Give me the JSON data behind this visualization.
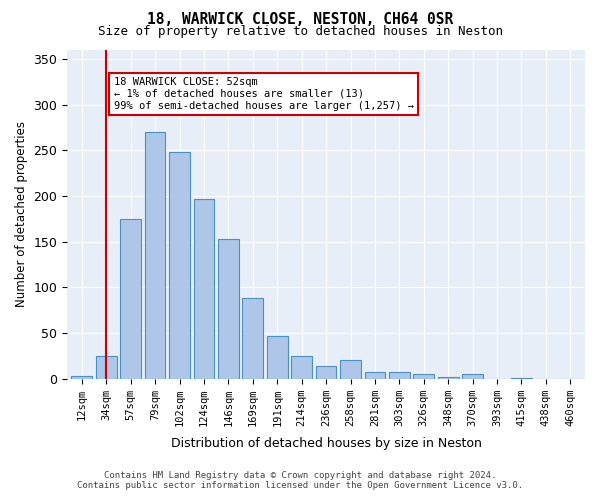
{
  "title1": "18, WARWICK CLOSE, NESTON, CH64 0SR",
  "title2": "Size of property relative to detached houses in Neston",
  "xlabel": "Distribution of detached houses by size in Neston",
  "ylabel": "Number of detached properties",
  "categories": [
    "12sqm",
    "34sqm",
    "57sqm",
    "79sqm",
    "102sqm",
    "124sqm",
    "146sqm",
    "169sqm",
    "191sqm",
    "214sqm",
    "236sqm",
    "258sqm",
    "281sqm",
    "303sqm",
    "326sqm",
    "348sqm",
    "370sqm",
    "393sqm",
    "415sqm",
    "438sqm",
    "460sqm"
  ],
  "bar_heights": [
    3,
    25,
    175,
    270,
    248,
    197,
    153,
    88,
    47,
    25,
    14,
    20,
    7,
    7,
    5,
    2,
    5,
    0,
    1,
    0,
    0
  ],
  "bar_color": "#aec6e8",
  "bar_edge_color": "#4a90c4",
  "property_line_x": 1.0,
  "property_line_label": "18 WARWICK CLOSE: 52sqm",
  "annotation_line1": "18 WARWICK CLOSE: 52sqm",
  "annotation_line2": "← 1% of detached houses are smaller (13)",
  "annotation_line3": "99% of semi-detached houses are larger (1,257) →",
  "annotation_box_color": "#ffffff",
  "annotation_box_edge_color": "#cc0000",
  "vline_color": "#cc0000",
  "ylim": [
    0,
    360
  ],
  "yticks": [
    0,
    50,
    100,
    150,
    200,
    250,
    300,
    350
  ],
  "bg_color": "#e8eef8",
  "footer1": "Contains HM Land Registry data © Crown copyright and database right 2024.",
  "footer2": "Contains public sector information licensed under the Open Government Licence v3.0."
}
